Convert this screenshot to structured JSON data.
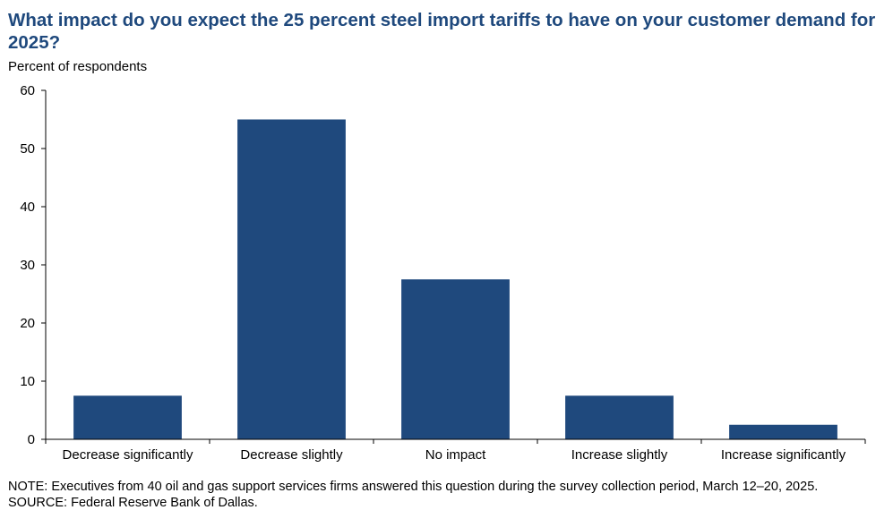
{
  "chart_data": {
    "type": "bar",
    "title": "What impact do you expect the 25 percent steel import tariffs to have on your customer demand for 2025?",
    "ylabel": "Percent of respondents",
    "xlabel": "",
    "categories": [
      "Decrease significantly",
      "Decrease slightly",
      "No impact",
      "Increase slightly",
      "Increase significantly"
    ],
    "values": [
      7.5,
      55.0,
      27.5,
      7.5,
      2.5
    ],
    "ylim": [
      0,
      60
    ],
    "yticks": [
      0,
      10,
      20,
      30,
      40,
      50,
      60
    ],
    "bar_color": "#1f497d",
    "grid": false,
    "legend": "none"
  },
  "notes": {
    "note": "NOTE: Executives from 40 oil and gas support services firms answered this question during the survey collection period, March 12–20, 2025.",
    "source": "SOURCE: Federal Reserve Bank of Dallas."
  },
  "colors": {
    "title": "#1f497d",
    "bars": "#1f497d"
  }
}
